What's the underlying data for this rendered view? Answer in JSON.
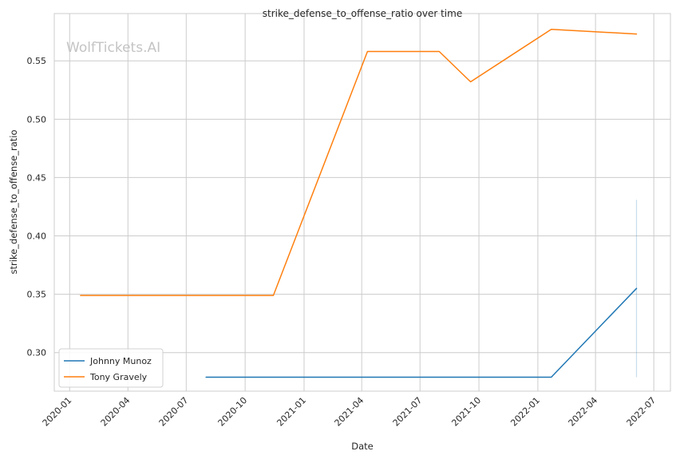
{
  "chart_data": {
    "type": "line",
    "title": "strike_defense_to_offense_ratio over time",
    "xlabel": "Date",
    "ylabel": "strike_defense_to_offense_ratio",
    "watermark": "WolfTickets.AI",
    "grid": true,
    "legend_position": "lower-left",
    "x_ticks": [
      "2020-01",
      "2020-04",
      "2020-07",
      "2020-10",
      "2021-01",
      "2021-04",
      "2021-07",
      "2021-10",
      "2022-01",
      "2022-04",
      "2022-07"
    ],
    "y_ticks": [
      0.3,
      0.35,
      0.4,
      0.45,
      0.5,
      0.55
    ],
    "xlim": [
      "2019-12-08",
      "2022-07-27"
    ],
    "ylim": [
      0.267,
      0.5905
    ],
    "series": [
      {
        "name": "Johnny Munoz",
        "color": "#1f77b4",
        "points": [
          {
            "x": "2020-08-01",
            "y": 0.279
          },
          {
            "x": "2022-01-22",
            "y": 0.279
          },
          {
            "x": "2022-06-04",
            "y": 0.355
          }
        ],
        "band": {
          "x": "2022-06-04",
          "low": 0.279,
          "high": 0.431
        }
      },
      {
        "name": "Tony Gravely",
        "color": "#ff7f0e",
        "points": [
          {
            "x": "2020-01-18",
            "y": 0.349
          },
          {
            "x": "2020-11-14",
            "y": 0.349
          },
          {
            "x": "2021-04-10",
            "y": 0.558
          },
          {
            "x": "2021-07-31",
            "y": 0.558
          },
          {
            "x": "2021-09-18",
            "y": 0.532
          },
          {
            "x": "2022-01-22",
            "y": 0.577
          },
          {
            "x": "2022-06-04",
            "y": 0.573
          }
        ]
      }
    ]
  }
}
